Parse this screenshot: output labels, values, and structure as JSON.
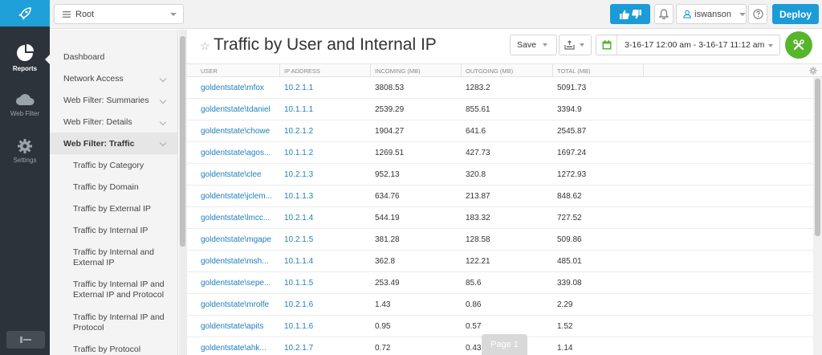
{
  "rail": {
    "items": [
      {
        "label": "Reports",
        "icon": "pie-chart-icon",
        "active": true
      },
      {
        "label": "Web Filter",
        "icon": "cloud-icon",
        "active": false
      },
      {
        "label": "Settings",
        "icon": "gear-icon",
        "active": false
      }
    ]
  },
  "topbar": {
    "root_select": "Root",
    "user": "iswanson",
    "deploy_label": "Deploy"
  },
  "nav": {
    "items": [
      {
        "label": "Dashboard",
        "level": 1,
        "chevron": false
      },
      {
        "label": "Network Access",
        "level": 1,
        "chevron": true
      },
      {
        "label": "Web Filter: Summaries",
        "level": 1,
        "chevron": true
      },
      {
        "label": "Web Filter: Details",
        "level": 1,
        "chevron": true
      },
      {
        "label": "Web Filter: Traffic",
        "level": 1,
        "chevron": true,
        "active": true
      },
      {
        "label": "Traffic by Category",
        "level": 2
      },
      {
        "label": "Traffic by Domain",
        "level": 2
      },
      {
        "label": "Traffic by External IP",
        "level": 2
      },
      {
        "label": "Traffic by Internal IP",
        "level": 2
      },
      {
        "label": "Traffic by Internal and External IP",
        "level": 2
      },
      {
        "label": "Traffic by Internal IP and External IP and Protocol",
        "level": 2
      },
      {
        "label": "Traffic by Internal IP and Protocol",
        "level": 2
      },
      {
        "label": "Traffic by Protocol",
        "level": 2
      }
    ]
  },
  "main": {
    "title": "Traffic by User and Internal IP",
    "save_label": "Save",
    "date_range": "3-16-17 12:00 am - 3-16-17 11:12 am",
    "columns": [
      "User",
      "IP Address",
      "Incoming (MB)",
      "Outgoing (MB)",
      "Total (MB)"
    ],
    "rows": [
      [
        "goldentstate\\mfox",
        "10.2.1.1",
        "3808.53",
        "1283.2",
        "5091.73"
      ],
      [
        "goldentstate\\tdaniel",
        "10.1.1.1",
        "2539.29",
        "855.61",
        "3394.9"
      ],
      [
        "goldentstate\\chowe",
        "10.2.1.2",
        "1904.27",
        "641.6",
        "2545.87"
      ],
      [
        "goldentstate\\agos...",
        "10.1.1.2",
        "1269.51",
        "427.73",
        "1697.24"
      ],
      [
        "goldentstate\\clee",
        "10.2.1.3",
        "952.13",
        "320.8",
        "1272.93"
      ],
      [
        "goldentstate\\jclem...",
        "10.1.1.3",
        "634.76",
        "213.87",
        "848.62"
      ],
      [
        "goldentstate\\lmcc...",
        "10.2.1.4",
        "544.19",
        "183.32",
        "727.52"
      ],
      [
        "goldentstate\\mgape",
        "10.2.1.5",
        "381.28",
        "128.58",
        "509.86"
      ],
      [
        "goldentstate\\msh...",
        "10.1.1.4",
        "362.8",
        "122.21",
        "485.01"
      ],
      [
        "goldentstate\\sepe...",
        "10.1.1.5",
        "253.49",
        "85.6",
        "339.08"
      ],
      [
        "goldentstate\\mrolfe",
        "10.2.1.6",
        "1.43",
        "0.86",
        "2.29"
      ],
      [
        "goldentstate\\apits",
        "10.1.1.6",
        "0.95",
        "0.57",
        "1.52"
      ],
      [
        "goldentstate\\ahk...",
        "10.2.1.7",
        "0.72",
        "0.43",
        "1.14"
      ]
    ],
    "page_label": "Page 1"
  }
}
